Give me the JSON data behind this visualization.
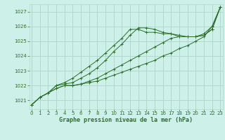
{
  "title": "Graphe pression niveau de la mer (hPa)",
  "bg_color": "#cdf0e8",
  "grid_color": "#b0d8cc",
  "line_color": "#2d6e2d",
  "x_ticks": [
    0,
    1,
    2,
    3,
    4,
    5,
    6,
    7,
    8,
    9,
    10,
    11,
    12,
    13,
    14,
    15,
    16,
    17,
    18,
    19,
    20,
    21,
    22,
    23
  ],
  "y_ticks": [
    1021,
    1022,
    1023,
    1024,
    1025,
    1026,
    1027
  ],
  "ylim": [
    1020.4,
    1027.5
  ],
  "xlim": [
    -0.3,
    23.3
  ],
  "series": [
    [
      1020.7,
      1021.2,
      1021.5,
      1021.8,
      1022.0,
      1022.0,
      1022.1,
      1022.2,
      1022.3,
      1022.5,
      1022.7,
      1022.9,
      1023.1,
      1023.3,
      1023.5,
      1023.7,
      1024.0,
      1024.2,
      1024.5,
      1024.7,
      1025.0,
      1025.3,
      1026.0,
      1027.3
    ],
    [
      1020.7,
      1021.2,
      1021.5,
      1021.8,
      1022.0,
      1022.0,
      1022.1,
      1022.3,
      1022.5,
      1022.8,
      1023.1,
      1023.4,
      1023.7,
      1024.0,
      1024.3,
      1024.6,
      1024.9,
      1025.2,
      1025.3,
      1025.3,
      1025.3,
      1025.5,
      1026.0,
      1027.3
    ],
    [
      1020.7,
      1021.2,
      1021.5,
      1022.0,
      1022.1,
      1022.2,
      1022.5,
      1022.8,
      1023.2,
      1023.7,
      1024.3,
      1024.8,
      1025.4,
      1025.9,
      1025.9,
      1025.8,
      1025.6,
      1025.5,
      1025.4,
      1025.3,
      1025.3,
      1025.4,
      1025.8,
      1027.3
    ],
    [
      1020.7,
      1021.2,
      1021.5,
      1022.0,
      1022.2,
      1022.5,
      1022.9,
      1023.3,
      1023.7,
      1024.2,
      1024.7,
      1025.2,
      1025.8,
      1025.8,
      1025.6,
      1025.6,
      1025.5,
      1025.5,
      1025.3,
      1025.3,
      1025.3,
      1025.4,
      1025.8,
      1027.3
    ]
  ]
}
